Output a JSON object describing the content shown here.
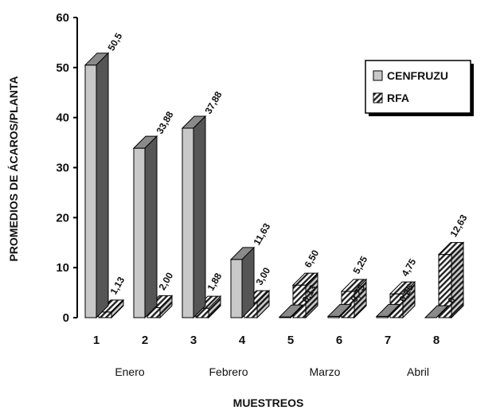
{
  "chart_data": {
    "type": "bar",
    "title": "",
    "xlabel": "MUESTREOS",
    "ylabel": "PROMEDIOS DE ÁCAROS/PLANTA",
    "ylim": [
      0,
      60
    ],
    "yticks": [
      0,
      10,
      20,
      30,
      40,
      50,
      60
    ],
    "categories": [
      "1",
      "2",
      "3",
      "4",
      "5",
      "6",
      "7",
      "8"
    ],
    "month_labels": [
      "Enero",
      "Febrero",
      "Marzo",
      "Abril"
    ],
    "series": [
      {
        "name": "CENFRUZU",
        "values": [
          50.5,
          33.88,
          37.88,
          11.63,
          0.13,
          0.25,
          0.25,
          0
        ],
        "labels": [
          "50,5",
          "33,88",
          "37,88",
          "11,63",
          "0,13",
          "0,25",
          "0,25",
          "0"
        ],
        "color": "#c8c8c8",
        "side_color": "#555555",
        "top_color": "#8a8a8a"
      },
      {
        "name": "RFA",
        "values": [
          1.13,
          2.0,
          1.88,
          3.0,
          6.5,
          5.25,
          4.75,
          12.63
        ],
        "labels": [
          "1,13",
          "2,00",
          "1,88",
          "3,00",
          "6,50",
          "5,25",
          "4,75",
          "12,63"
        ],
        "pattern": "diagonal-hatch"
      }
    ],
    "legend_position": "right",
    "grid": false
  }
}
